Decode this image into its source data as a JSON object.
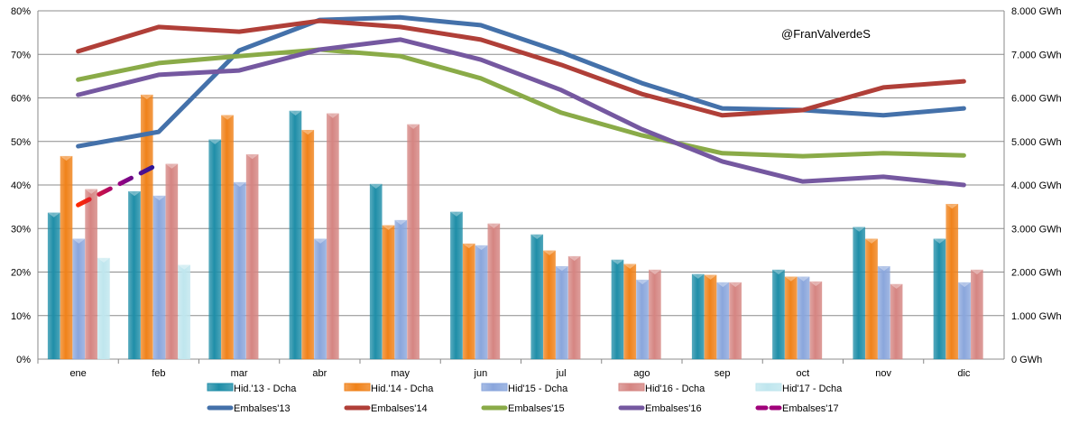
{
  "chart_data": {
    "type": "bar",
    "watermark": "@FranValverdeS",
    "categories": [
      "ene",
      "feb",
      "mar",
      "abr",
      "may",
      "jun",
      "jul",
      "ago",
      "sep",
      "oct",
      "nov",
      "dic"
    ],
    "y_left": {
      "ylim": [
        0,
        80
      ],
      "ticks": [
        "0%",
        "10%",
        "20%",
        "30%",
        "40%",
        "50%",
        "60%",
        "70%",
        "80%"
      ]
    },
    "y_right": {
      "ylim": [
        0,
        8000
      ],
      "ticks": [
        "0 GWh",
        "1.000 GWh",
        "2.000 GWh",
        "3.000 GWh",
        "4.000 GWh",
        "5.000 GWh",
        "6.000 GWh",
        "7.000 GWh",
        "8.000 GWh"
      ]
    },
    "bar_series": [
      {
        "name": "Hid.'13 - Dcha",
        "color": "#1f8ea8",
        "values": [
          33.6,
          38.5,
          50.4,
          57,
          40.2,
          33.8,
          28.6,
          22.8,
          19.5,
          20.5,
          30.3,
          27.6
        ]
      },
      {
        "name": "Hid.'14 - Dcha",
        "color": "#f0821a",
        "values": [
          46.6,
          60.7,
          56,
          52.6,
          30.7,
          26.5,
          24.9,
          21.8,
          19.3,
          18.9,
          27.6,
          35.6
        ]
      },
      {
        "name": "Hid'15 - Dcha",
        "color": "#8aa6dc",
        "values": [
          27.6,
          37.5,
          40.6,
          27.6,
          31.9,
          26.1,
          21.3,
          18.2,
          17.6,
          18.9,
          21.3,
          17.6
        ]
      },
      {
        "name": "Hid'16 - Dcha",
        "color": "#d58582",
        "values": [
          39,
          44.8,
          47,
          56.4,
          53.9,
          31.1,
          23.6,
          20.5,
          17.6,
          17.8,
          17.2,
          20.5
        ]
      },
      {
        "name": "Hid'17 - Dcha",
        "color": "#bfe6ee",
        "values": [
          23.2,
          21.6,
          null,
          null,
          null,
          null,
          null,
          null,
          null,
          null,
          null,
          null
        ]
      }
    ],
    "line_series": [
      {
        "name": "Embalses'13",
        "color": "#4471aa",
        "values": [
          4890,
          5220,
          7090,
          7790,
          7850,
          7670,
          7050,
          6340,
          5760,
          5720,
          5600,
          5760
        ]
      },
      {
        "name": "Embalses'14",
        "color": "#b03f38",
        "values": [
          7070,
          7630,
          7520,
          7770,
          7630,
          7340,
          6760,
          6090,
          5600,
          5720,
          6240,
          6380
        ]
      },
      {
        "name": "Embalses'15",
        "color": "#8aab48",
        "values": [
          6420,
          6800,
          6960,
          7110,
          6960,
          6450,
          5660,
          5140,
          4730,
          4660,
          4730,
          4680
        ]
      },
      {
        "name": "Embalses'16",
        "color": "#7558a0",
        "values": [
          6070,
          6530,
          6630,
          7110,
          7340,
          6880,
          6180,
          5280,
          4540,
          4080,
          4190,
          4000
        ]
      },
      {
        "name": "Embalses'17",
        "color": "#a0007a",
        "dashed": true,
        "values": [
          3540,
          4480,
          null,
          null,
          null,
          null,
          null,
          null,
          null,
          null,
          null,
          null
        ]
      }
    ]
  }
}
